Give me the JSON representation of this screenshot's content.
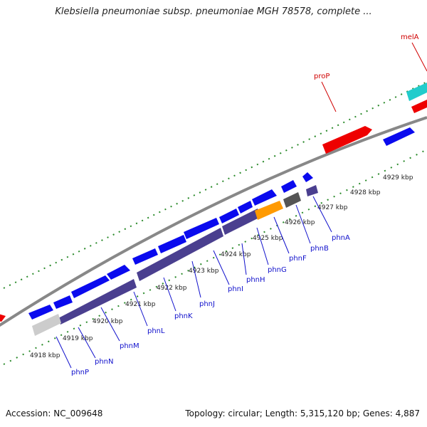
{
  "title": "Klebsiella pneumoniae subsp. pneumoniae MGH 78578, complete ...",
  "footer": {
    "accession": "Accession: NC_009648",
    "topology": "Topology: circular; Length: 5,315,120 bp; Genes: 4,887"
  },
  "colors": {
    "backbone": "#888888",
    "forward_gene": "#0a0aee",
    "cds_band": "#4a3f8f",
    "highlight_gene": "#ee0000",
    "misc_cyan": "#22cccc",
    "orange_gene": "#ff9a00",
    "gray_feature": "#cccccc",
    "dark_gray_feature": "#555555",
    "tick": "#2a8a2a",
    "kbp_label": "#222222",
    "gene_label_blue": "#1010cc",
    "gene_label_red": "#d00000"
  },
  "kbp_labels": [
    "4918 kbp",
    "4919 kbp",
    "4920 kbp",
    "4921 kbp",
    "4922 kbp",
    "4923 kbp",
    "4924 kbp",
    "4925 kbp",
    "4926 kbp",
    "4927 kbp",
    "4928 kbp",
    "4929 kbp"
  ],
  "gene_labels": [
    "phnP",
    "phnN",
    "phnM",
    "phnL",
    "phnK",
    "phnJ",
    "phnI",
    "phnH",
    "phnG",
    "phnF",
    "phnB",
    "phnA"
  ],
  "top_gene_labels": [
    "proP",
    "melA"
  ]
}
